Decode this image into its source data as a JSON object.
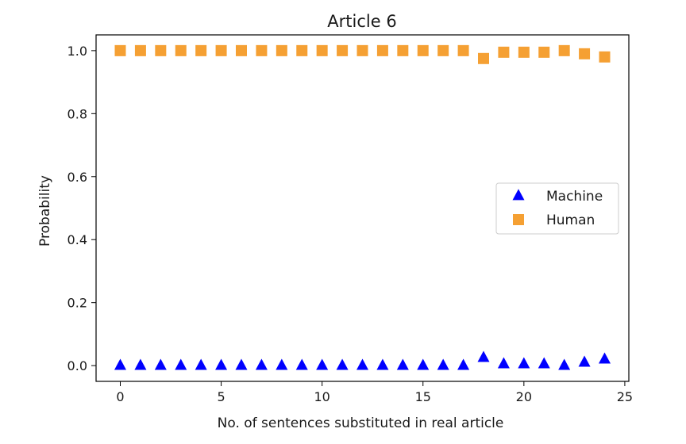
{
  "chart_data": {
    "type": "scatter",
    "title": "Article 6",
    "xlabel": "No. of sentences substituted in real article",
    "ylabel": "Probability",
    "xlim": [
      -1.2,
      25.2
    ],
    "ylim": [
      -0.05,
      1.05
    ],
    "xticks": [
      0,
      5,
      10,
      15,
      20,
      25
    ],
    "xtick_labels": [
      "0",
      "5",
      "10",
      "15",
      "20",
      "25"
    ],
    "yticks": [
      0.0,
      0.2,
      0.4,
      0.6,
      0.8,
      1.0
    ],
    "ytick_labels": [
      "0.0",
      "0.2",
      "0.4",
      "0.6",
      "0.8",
      "1.0"
    ],
    "grid": false,
    "legend_position": "center-right",
    "series": [
      {
        "name": "Machine",
        "marker": "triangle",
        "color": "#0000ff",
        "x": [
          0,
          1,
          2,
          3,
          4,
          5,
          6,
          7,
          8,
          9,
          10,
          11,
          12,
          13,
          14,
          15,
          16,
          17,
          18,
          19,
          20,
          21,
          22,
          23,
          24
        ],
        "y": [
          0.0,
          0.0,
          0.0,
          0.0,
          0.0,
          0.0,
          0.0,
          0.0,
          0.0,
          0.0,
          0.0,
          0.0,
          0.0,
          0.0,
          0.0,
          0.0,
          0.0,
          0.0,
          0.025,
          0.005,
          0.005,
          0.005,
          0.0,
          0.01,
          0.02
        ]
      },
      {
        "name": "Human",
        "marker": "square",
        "color": "#f5a033",
        "x": [
          0,
          1,
          2,
          3,
          4,
          5,
          6,
          7,
          8,
          9,
          10,
          11,
          12,
          13,
          14,
          15,
          16,
          17,
          18,
          19,
          20,
          21,
          22,
          23,
          24
        ],
        "y": [
          1.0,
          1.0,
          1.0,
          1.0,
          1.0,
          1.0,
          1.0,
          1.0,
          1.0,
          1.0,
          1.0,
          1.0,
          1.0,
          1.0,
          1.0,
          1.0,
          1.0,
          1.0,
          0.975,
          0.995,
          0.995,
          0.995,
          1.0,
          0.99,
          0.98
        ]
      }
    ]
  }
}
